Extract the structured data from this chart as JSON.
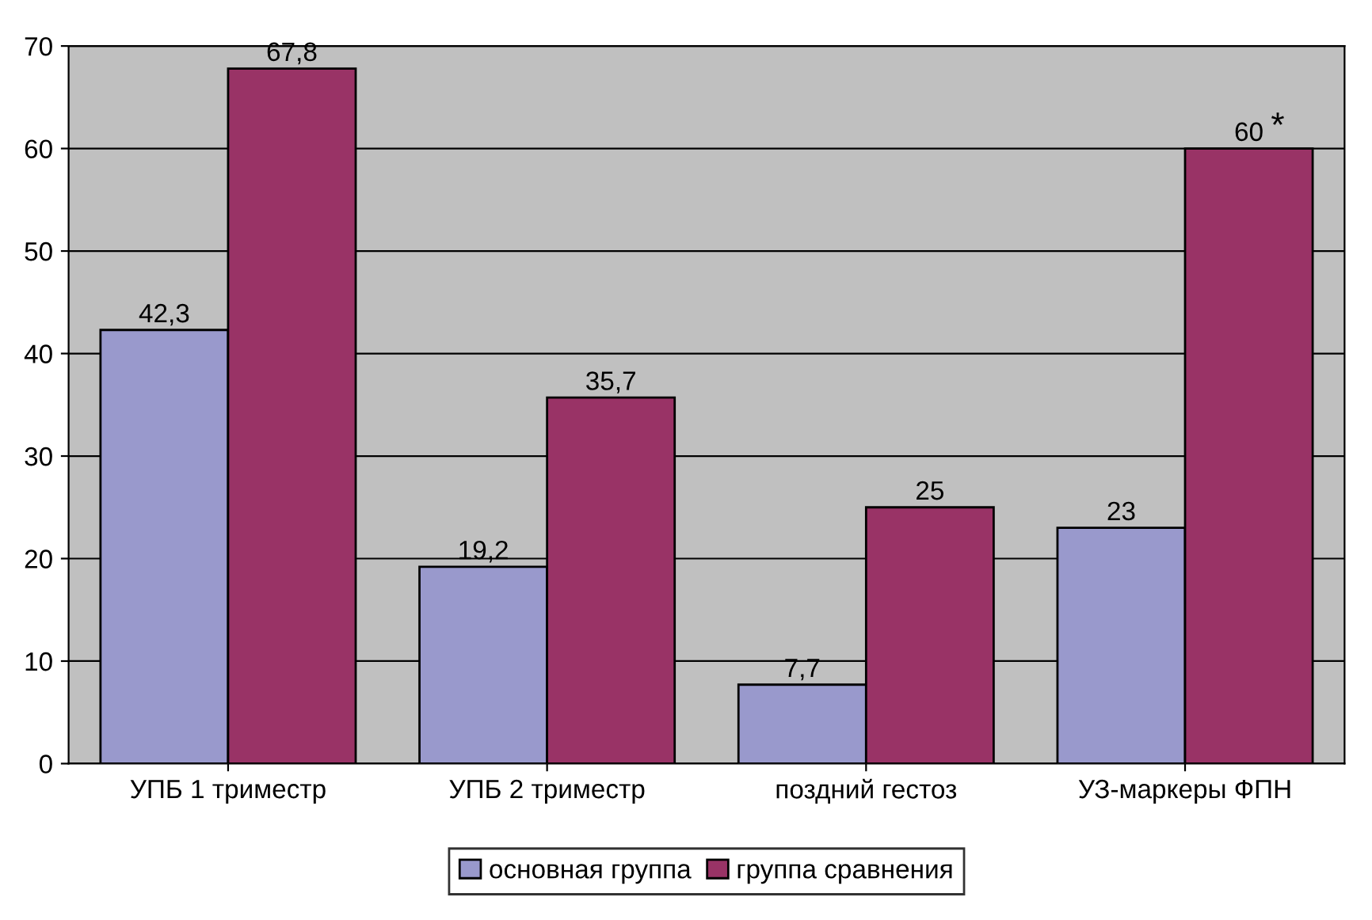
{
  "chart_data": {
    "type": "bar",
    "categories": [
      "УПБ 1 триместр",
      "УПБ 2 триместр",
      "поздний гестоз",
      "УЗ-маркеры ФПН"
    ],
    "series": [
      {
        "name": "основная группа",
        "color": "#9999cc",
        "values": [
          42.3,
          19.2,
          7.7,
          23
        ],
        "value_labels": [
          "42,3",
          "19,2",
          "7,7",
          "23"
        ]
      },
      {
        "name": "группа сравнения",
        "color": "#993366",
        "values": [
          67.8,
          35.7,
          25,
          60
        ],
        "value_labels": [
          "67,8",
          "35,7",
          "25",
          "60"
        ]
      }
    ],
    "annotations": [
      {
        "text": "*",
        "x": "УЗ-маркеры ФПН",
        "y": 60
      }
    ],
    "ylim": [
      0,
      70
    ],
    "yticks": [
      0,
      10,
      20,
      30,
      40,
      50,
      60,
      70
    ],
    "grid": "y",
    "legend": "bottom"
  }
}
